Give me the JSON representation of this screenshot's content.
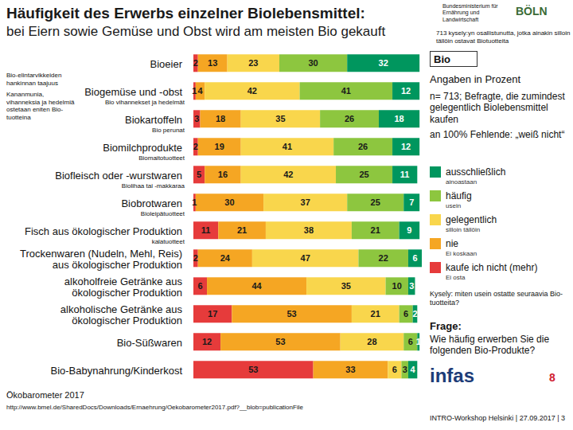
{
  "chart_data": {
    "type": "bar",
    "title": "Häufigkeit des Erwerbs einzelner Biolebensmittel:",
    "subtitle": "bei Eiern sowie Gemüse und Obst wird am meisten Bio gekauft",
    "orientation": "horizontal",
    "stacked": true,
    "data_labels": true,
    "tick_labels": "y",
    "grid": false,
    "legend": "right",
    "categories": [
      "Bioeier",
      "Biogemüse und -obst",
      "Biokartoffeln",
      "Biomilchprodukte",
      "Biofleisch oder -wurstwaren",
      "Biobrotwaren",
      "Fisch aus ökologischer Produktion",
      "Trockenwaren (Nudeln, Mehl, Reis) aus ökologischer Produktion",
      "alkoholfreie Getränke aus ökologischer Produktion",
      "alkoholische Getränke aus ökologischer Produktion",
      "Bio-Süßwaren",
      "Bio-Babynahrung/Kinderkost"
    ],
    "series": [
      {
        "name": "kaufe ich nicht (mehr)",
        "color": "#e63b3b",
        "values": [
          2,
          1,
          3,
          2,
          5,
          1,
          11,
          2,
          6,
          17,
          12,
          53
        ]
      },
      {
        "name": "nie",
        "color": "#f5a623",
        "values": [
          13,
          4,
          18,
          19,
          16,
          30,
          21,
          24,
          44,
          53,
          53,
          33
        ]
      },
      {
        "name": "gelegentlich",
        "color": "#f9d64c",
        "values": [
          23,
          42,
          35,
          41,
          42,
          37,
          38,
          47,
          35,
          21,
          28,
          6
        ]
      },
      {
        "name": "häufig",
        "color": "#8dc63f",
        "values": [
          30,
          41,
          26,
          26,
          25,
          25,
          21,
          22,
          10,
          6,
          6,
          3
        ]
      },
      {
        "name": "ausschließlich",
        "color": "#00965e",
        "values": [
          32,
          12,
          18,
          12,
          11,
          7,
          9,
          6,
          3,
          2,
          1,
          4
        ]
      }
    ],
    "annotations": [
      "Bio",
      "Angaben in Prozent",
      "n= 713; Befragte, die zumindest gelegentlich Biolebensmittel kaufen",
      "an 100% Fehlende: „weiß nicht“",
      "Frage:",
      "Wie häufig erwerben Sie die folgenden Bio-Produkte?",
      "Ökobarometer 2017",
      "http://www.bmel.de/SharedDocs/Downloads/Ernaehrung/Oekobarometer2017.pdf?__blob=publicationFile",
      "infas",
      "8",
      "INTRO-Workshop Helsinki | 27.09.2017 | 3",
      "Bundesministerium für Ernährung und Landwirtschaft",
      "BÖLN",
      "713 kysely:yn osallistunutta, jotka ainakin silloin tällöin ostavat Biotuotteita",
      "Bio-elintarvikkeiden hankinnan taajuus",
      "Kananmunia, vihanneksia ja hedelmiä ostetaan eniten Bio-tuotteina",
      "Bio vihannekset ja hedelmät",
      "Bio perunat",
      "Biomaitotuotteet",
      "Biolihaa tai -makkaraa",
      "Bioleipätuotteet",
      "kalatuotteet",
      "ainoastaan",
      "usein",
      "silloin tällöin",
      "Ei koskaan",
      "Ei osta",
      "Kysely: miten usein ostatte seuraavia Bio-tuotteita?"
    ]
  }
}
